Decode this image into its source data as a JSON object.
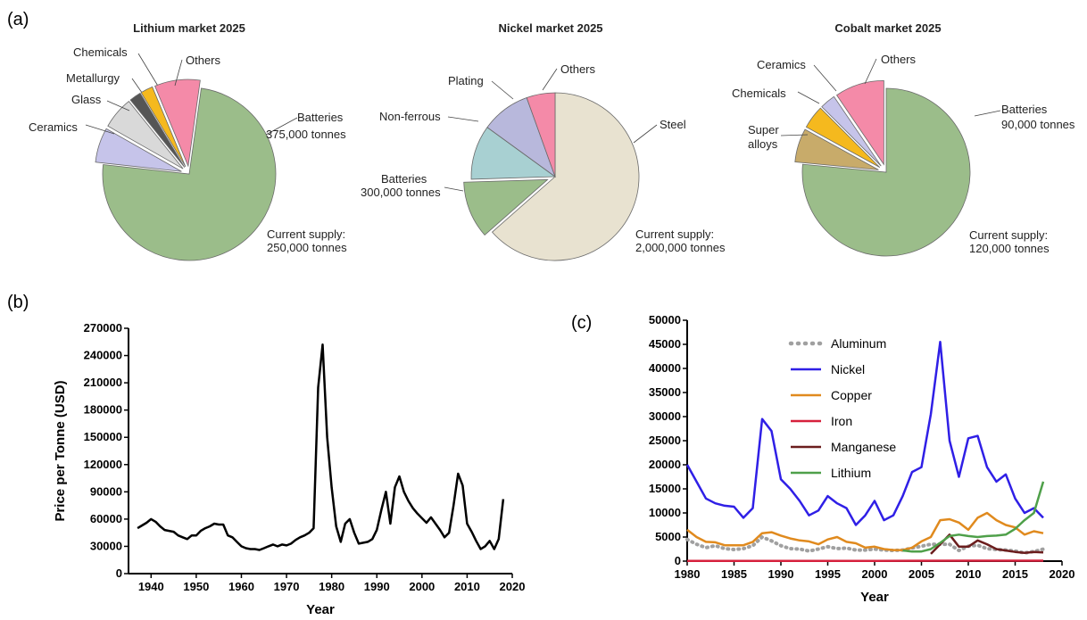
{
  "panels": {
    "a": "(a)",
    "b": "(b)",
    "c": "(c)"
  },
  "chart_data": [
    {
      "type": "pie",
      "title": "Lithium market 2025",
      "start_angle": 8,
      "slices": [
        {
          "label": "Batteries",
          "value": 74.5,
          "color": "#9bbd8a",
          "exploded": false
        },
        {
          "label": "Ceramics",
          "value": 6.5,
          "color": "#c6c4ea",
          "exploded": true
        },
        {
          "label": "Glass",
          "value": 6.0,
          "color": "#d9d9d9",
          "exploded": true
        },
        {
          "label": "Metallurgy",
          "value": 2.2,
          "color": "#555555",
          "exploded": true
        },
        {
          "label": "Chemicals",
          "value": 2.3,
          "color": "#f5b91e",
          "exploded": true
        },
        {
          "label": "Others",
          "value": 8.5,
          "color": "#f48aa8",
          "exploded": true
        }
      ],
      "annotations": [
        {
          "text": "375,000 tonnes"
        },
        {
          "text": "Current supply:"
        },
        {
          "text": "250,000 tonnes"
        }
      ]
    },
    {
      "type": "pie",
      "title": "Nickel market 2025",
      "start_angle": 0,
      "slices": [
        {
          "label": "Steel",
          "value": 63.5,
          "color": "#e8e2d0",
          "exploded": false
        },
        {
          "label": "Batteries",
          "value": 11.0,
          "color": "#9bbd8a",
          "exploded": true
        },
        {
          "label": "Non-ferrous",
          "value": 10.5,
          "color": "#a8d0d2",
          "exploded": false
        },
        {
          "label": "Plating",
          "value": 9.5,
          "color": "#b8b8dc",
          "exploded": false
        },
        {
          "label": "Others",
          "value": 5.5,
          "color": "#f48aa8",
          "exploded": false
        }
      ],
      "annotations": [
        {
          "text": "300,000 tonnes"
        },
        {
          "text": "Current supply:"
        },
        {
          "text": "2,000,000 tonnes"
        }
      ]
    },
    {
      "type": "pie",
      "title": "Cobalt market 2025",
      "start_angle": 0,
      "slices": [
        {
          "label": "Batteries",
          "value": 76.5,
          "color": "#9bbd8a",
          "exploded": false
        },
        {
          "label": "Super alloys",
          "value": 6.5,
          "color": "#c8ab6a",
          "exploded": true
        },
        {
          "label": "Chemicals",
          "value": 4.5,
          "color": "#f5b91e",
          "exploded": true
        },
        {
          "label": "Ceramics",
          "value": 3.0,
          "color": "#c6c4ea",
          "exploded": true
        },
        {
          "label": "Others",
          "value": 9.5,
          "color": "#f48aa8",
          "exploded": true
        }
      ],
      "annotations": [
        {
          "text": "90,000 tonnes"
        },
        {
          "text": "Current supply:"
        },
        {
          "text": "120,000 tonnes"
        }
      ]
    },
    {
      "type": "line",
      "xlabel": "Year",
      "ylabel": "Price per Tonne (USD)",
      "xlim": [
        1935,
        2020
      ],
      "ylim": [
        0,
        270000
      ],
      "xticks": [
        1940,
        1950,
        1960,
        1970,
        1980,
        1990,
        2000,
        2010,
        2020
      ],
      "yticks": [
        0,
        30000,
        60000,
        90000,
        120000,
        150000,
        180000,
        210000,
        240000,
        270000
      ],
      "series": [
        {
          "color": "#000000",
          "x": [
            1937,
            1938,
            1939,
            1940,
            1941,
            1942,
            1943,
            1944,
            1945,
            1946,
            1947,
            1948,
            1949,
            1950,
            1951,
            1952,
            1953,
            1954,
            1955,
            1956,
            1957,
            1958,
            1959,
            1960,
            1961,
            1962,
            1963,
            1964,
            1965,
            1966,
            1967,
            1968,
            1969,
            1970,
            1971,
            1972,
            1973,
            1974,
            1975,
            1976,
            1977,
            1978,
            1979,
            1980,
            1981,
            1982,
            1983,
            1984,
            1985,
            1986,
            1987,
            1988,
            1989,
            1990,
            1991,
            1992,
            1993,
            1994,
            1995,
            1996,
            1997,
            1998,
            1999,
            2000,
            2001,
            2002,
            2003,
            2004,
            2005,
            2006,
            2007,
            2008,
            2009,
            2010,
            2011,
            2012,
            2013,
            2014,
            2015,
            2016,
            2017,
            2018
          ],
          "y": [
            50000,
            53000,
            56000,
            60000,
            57000,
            52000,
            48000,
            47000,
            46000,
            42000,
            40000,
            38000,
            42000,
            42000,
            47000,
            50000,
            52000,
            55000,
            54000,
            54000,
            42000,
            40000,
            35000,
            30000,
            28000,
            27000,
            27000,
            26000,
            28000,
            30000,
            32000,
            30000,
            32000,
            31000,
            33000,
            37000,
            40000,
            42000,
            45000,
            50000,
            205000,
            252000,
            150000,
            95000,
            52000,
            35000,
            55000,
            60000,
            45000,
            33000,
            34000,
            35000,
            38000,
            48000,
            70000,
            90000,
            55000,
            95000,
            107000,
            90000,
            80000,
            72000,
            66000,
            61000,
            56000,
            62000,
            55000,
            48000,
            40000,
            45000,
            75000,
            110000,
            97000,
            55000,
            46000,
            36000,
            27000,
            30000,
            36000,
            27000,
            38000,
            82000
          ]
        }
      ]
    },
    {
      "type": "line",
      "xlabel": "Year",
      "xlim": [
        1980,
        2020
      ],
      "ylim": [
        0,
        50000
      ],
      "xticks": [
        1980,
        1985,
        1990,
        1995,
        2000,
        2005,
        2010,
        2015,
        2020
      ],
      "yticks": [
        0,
        5000,
        10000,
        15000,
        20000,
        25000,
        30000,
        35000,
        40000,
        45000,
        50000
      ],
      "legend_position": "top-left",
      "series": [
        {
          "name": "Aluminum",
          "color": "#a0a0a0",
          "dashed": true,
          "x": [
            1980,
            1981,
            1982,
            1983,
            1984,
            1985,
            1986,
            1987,
            1988,
            1989,
            1990,
            1991,
            1992,
            1993,
            1994,
            1995,
            1996,
            1997,
            1998,
            1999,
            2000,
            2001,
            2002,
            2003,
            2004,
            2005,
            2006,
            2007,
            2008,
            2009,
            2010,
            2011,
            2012,
            2013,
            2014,
            2015,
            2016,
            2017,
            2018
          ],
          "y": [
            4500,
            3500,
            2800,
            3200,
            2600,
            2400,
            2600,
            3200,
            5000,
            4200,
            3200,
            2600,
            2500,
            2100,
            2500,
            3000,
            2600,
            2700,
            2300,
            2300,
            2500,
            2300,
            2200,
            2300,
            2700,
            3100,
            3500,
            3500,
            3500,
            2200,
            3100,
            3300,
            2600,
            2400,
            2300,
            2100,
            1700,
            2000,
            2500
          ]
        },
        {
          "name": "Nickel",
          "color": "#2f1fe6",
          "dashed": false,
          "x": [
            1980,
            1981,
            1982,
            1983,
            1984,
            1985,
            1986,
            1987,
            1988,
            1989,
            1990,
            1991,
            1992,
            1993,
            1994,
            1995,
            1996,
            1997,
            1998,
            1999,
            2000,
            2001,
            2002,
            2003,
            2004,
            2005,
            2006,
            2007,
            2008,
            2009,
            2010,
            2011,
            2012,
            2013,
            2014,
            2015,
            2016,
            2017,
            2018
          ],
          "y": [
            20000,
            16500,
            13000,
            12000,
            11500,
            11300,
            9000,
            11000,
            29500,
            27000,
            17000,
            15000,
            12500,
            9500,
            10500,
            13500,
            12000,
            11000,
            7500,
            9500,
            12500,
            8500,
            9500,
            13500,
            18500,
            19500,
            30500,
            45500,
            25000,
            17500,
            25500,
            26000,
            19500,
            16500,
            18000,
            13000,
            10000,
            11000,
            9000
          ]
        },
        {
          "name": "Copper",
          "color": "#e08a1e",
          "dashed": false,
          "x": [
            1980,
            1981,
            1982,
            1983,
            1984,
            1985,
            1986,
            1987,
            1988,
            1989,
            1990,
            1991,
            1992,
            1993,
            1994,
            1995,
            1996,
            1997,
            1998,
            1999,
            2000,
            2001,
            2002,
            2003,
            2004,
            2005,
            2006,
            2007,
            2008,
            2009,
            2010,
            2011,
            2012,
            2013,
            2014,
            2015,
            2016,
            2017,
            2018
          ],
          "y": [
            6500,
            5000,
            4000,
            3900,
            3300,
            3300,
            3300,
            4000,
            5800,
            6000,
            5300,
            4700,
            4300,
            4100,
            3500,
            4500,
            5000,
            4000,
            3700,
            2800,
            3000,
            2500,
            2300,
            2300,
            2800,
            4100,
            5000,
            8500,
            8700,
            8000,
            6500,
            9000,
            10000,
            8500,
            7500,
            7000,
            5500,
            6200,
            5800
          ]
        },
        {
          "name": "Iron",
          "color": "#d6203c",
          "dashed": false,
          "x": [
            1980,
            1990,
            2000,
            2010,
            2018
          ],
          "y": [
            60,
            60,
            60,
            90,
            90
          ]
        },
        {
          "name": "Manganese",
          "color": "#6b1d1d",
          "dashed": false,
          "x": [
            2006,
            2007,
            2008,
            2009,
            2010,
            2011,
            2012,
            2013,
            2014,
            2015,
            2016,
            2017,
            2018
          ],
          "y": [
            1500,
            3500,
            5500,
            3000,
            3000,
            4300,
            3500,
            2500,
            2200,
            1900,
            1700,
            1900,
            1800
          ]
        },
        {
          "name": "Lithium",
          "color": "#4fa04a",
          "dashed": false,
          "x": [
            2003,
            2004,
            2005,
            2006,
            2007,
            2008,
            2009,
            2010,
            2011,
            2012,
            2013,
            2014,
            2015,
            2016,
            2017,
            2018
          ],
          "y": [
            2200,
            2000,
            2000,
            2500,
            3800,
            5200,
            5500,
            5200,
            5000,
            5200,
            5300,
            5500,
            6700,
            8500,
            10000,
            16500
          ]
        }
      ]
    }
  ]
}
